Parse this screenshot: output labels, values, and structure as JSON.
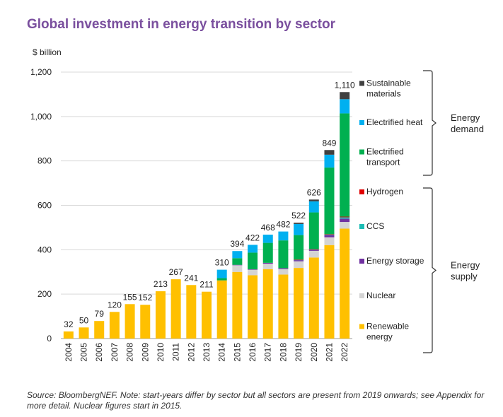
{
  "chart_data": {
    "type": "bar",
    "stacked": true,
    "title": "Global investment in energy transition by sector",
    "ylabel": "$ billion",
    "xlabel": "",
    "ylim": [
      0,
      1200
    ],
    "yticks": [
      0,
      200,
      400,
      600,
      800,
      1000,
      1200
    ],
    "ytick_labels": [
      "0",
      "200",
      "400",
      "600",
      "800",
      "1,000",
      "1,200"
    ],
    "grid": true,
    "legend_position": "right",
    "categories": [
      "2004",
      "2005",
      "2006",
      "2007",
      "2008",
      "2009",
      "2010",
      "2011",
      "2012",
      "2013",
      "2014",
      "2015",
      "2016",
      "2017",
      "2018",
      "2019",
      "2020",
      "2021",
      "2022"
    ],
    "totals": [
      32,
      50,
      79,
      120,
      155,
      152,
      213,
      267,
      241,
      211,
      310,
      394,
      422,
      468,
      482,
      522,
      626,
      849,
      1110
    ],
    "total_labels": [
      "32",
      "50",
      "79",
      "120",
      "155",
      "152",
      "213",
      "267",
      "241",
      "211",
      "310",
      "394",
      "422",
      "468",
      "482",
      "522",
      "626",
      "849",
      "1,110"
    ],
    "series": [
      {
        "name": "Renewable energy",
        "color": "#ffc000",
        "values": [
          32,
          50,
          79,
          120,
          155,
          152,
          213,
          267,
          241,
          211,
          262,
          300,
          285,
          312,
          288,
          318,
          365,
          421,
          495
        ]
      },
      {
        "name": "Nuclear",
        "color": "#d4d4d4",
        "values": [
          0,
          0,
          0,
          0,
          0,
          0,
          0,
          0,
          0,
          0,
          0,
          30,
          25,
          25,
          25,
          30,
          30,
          35,
          30
        ]
      },
      {
        "name": "Energy storage",
        "color": "#7030a0",
        "values": [
          0,
          0,
          0,
          0,
          0,
          0,
          0,
          0,
          0,
          0,
          0,
          2,
          2,
          4,
          4,
          5,
          5,
          10,
          15
        ]
      },
      {
        "name": "CCS",
        "color": "#1cbcb4",
        "values": [
          0,
          0,
          0,
          0,
          0,
          0,
          0,
          0,
          0,
          0,
          0,
          0,
          0,
          0,
          0,
          2,
          2,
          3,
          6
        ]
      },
      {
        "name": "Hydrogen",
        "color": "#e00000",
        "values": [
          0,
          0,
          0,
          0,
          0,
          0,
          0,
          0,
          0,
          0,
          0,
          0,
          0,
          0,
          0,
          1,
          1,
          1,
          3
        ]
      },
      {
        "name": "Electrified transport",
        "color": "#00b050",
        "values": [
          0,
          0,
          0,
          0,
          0,
          0,
          0,
          0,
          0,
          0,
          10,
          30,
          75,
          90,
          125,
          110,
          165,
          300,
          465
        ]
      },
      {
        "name": "Electrified heat",
        "color": "#00b0f0",
        "values": [
          0,
          0,
          0,
          0,
          0,
          0,
          0,
          0,
          0,
          0,
          38,
          32,
          35,
          37,
          40,
          50,
          50,
          58,
          64
        ]
      },
      {
        "name": "Sustainable materials",
        "color": "#404040",
        "values": [
          0,
          0,
          0,
          0,
          0,
          0,
          0,
          0,
          0,
          0,
          0,
          0,
          0,
          0,
          0,
          6,
          8,
          21,
          32
        ]
      }
    ],
    "legend": [
      {
        "lines": [
          "Sustainable",
          "materials"
        ],
        "color": "#404040"
      },
      {
        "lines": [
          "Electrified heat"
        ],
        "color": "#00b0f0"
      },
      {
        "lines": [
          "Electrified",
          "transport"
        ],
        "color": "#00b050"
      },
      {
        "lines": [
          "Hydrogen"
        ],
        "color": "#e00000"
      },
      {
        "lines": [
          "CCS"
        ],
        "color": "#1cbcb4"
      },
      {
        "lines": [
          "Energy storage"
        ],
        "color": "#7030a0"
      },
      {
        "lines": [
          "Nuclear"
        ],
        "color": "#d4d4d4"
      },
      {
        "lines": [
          "Renewable",
          "energy"
        ],
        "color": "#ffc000"
      }
    ],
    "groups": [
      {
        "lines": [
          "Energy",
          "demand"
        ]
      },
      {
        "lines": [
          "Energy",
          "supply"
        ]
      }
    ],
    "source": "Source: BloombergNEF. Note: start-years differ by sector but all sectors are present from 2019 onwards; see Appendix for more detail. Nuclear figures start in 2015."
  }
}
